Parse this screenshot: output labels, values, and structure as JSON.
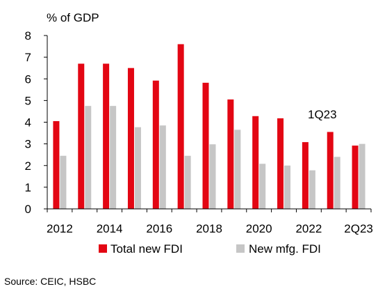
{
  "chart_data": {
    "type": "bar",
    "unit_label": "% of GDP",
    "categories": [
      "2012",
      "2013",
      "2014",
      "2015",
      "2016",
      "2017",
      "2018",
      "2019",
      "2020",
      "2021",
      "2022",
      "1Q23",
      "2Q23"
    ],
    "x_tick_labels": [
      "2012",
      "2014",
      "2016",
      "2018",
      "2020",
      "2022",
      "2Q23"
    ],
    "series": [
      {
        "name": "Total new FDI",
        "color": "#e30613",
        "values": [
          4.05,
          6.7,
          6.7,
          6.5,
          5.92,
          7.6,
          5.82,
          5.05,
          4.28,
          4.18,
          3.08,
          3.55,
          2.92
        ]
      },
      {
        "name": "New mfg. FDI",
        "color": "#c6c6c6",
        "values": [
          2.45,
          4.75,
          4.75,
          3.77,
          3.85,
          2.45,
          2.98,
          3.65,
          2.08,
          2.0,
          1.78,
          2.4,
          3.0
        ]
      }
    ],
    "ylim": [
      0,
      8
    ],
    "yticks": [
      0,
      1,
      2,
      3,
      4,
      5,
      6,
      7,
      8
    ],
    "annotation": "1Q23",
    "legend_position": "bottom",
    "grid": false
  },
  "source": "Source: CEIC, HSBC"
}
